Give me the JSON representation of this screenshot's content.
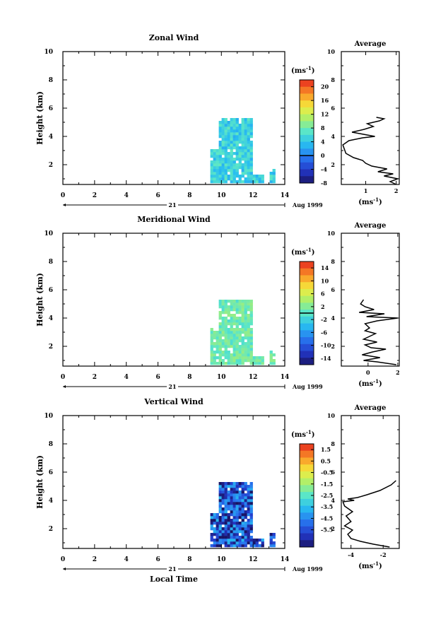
{
  "figure": {
    "shared_xlabel": "Local Time",
    "date_label": "21",
    "date_suffix": "Aug 1999"
  },
  "chart_data": [
    {
      "type": "heatmap",
      "title": "Zonal Wind",
      "ylabel": "Height (km)",
      "xlim": [
        0,
        14
      ],
      "ylim": [
        0.6,
        10
      ],
      "xticks": [
        "0",
        "2",
        "4",
        "6",
        "8",
        "10",
        "12",
        "14"
      ],
      "yticks": [
        "2",
        "4",
        "6",
        "8",
        "10"
      ],
      "colorbar": {
        "label_prefix": "(ms",
        "label_exp": "-1",
        "label_suffix": ")",
        "min": -8,
        "max": 22,
        "ticks": [
          "20",
          "16",
          "12",
          "8",
          "4",
          "0",
          "-4",
          "-8"
        ],
        "tick_values": [
          20,
          16,
          12,
          8,
          4,
          0,
          -4,
          -8
        ],
        "contour_value": 0
      },
      "region": {
        "x_start": 9.3,
        "x_end": 13.4,
        "y_top": 5.3,
        "dominant_value": 5,
        "description_value_range": [
          -2,
          8
        ]
      },
      "average_profile": {
        "title": "Average",
        "xlabel_prefix": "(ms",
        "xlabel_exp": "-1",
        "xlabel_suffix": ")",
        "xlim": [
          0.2,
          2.1
        ],
        "xticks": [
          "1",
          "2"
        ],
        "xtick_values": [
          1,
          2
        ],
        "yticks": [
          "2",
          "4",
          "6",
          "8",
          "10"
        ],
        "points": [
          [
            2.0,
            0.6
          ],
          [
            1.8,
            0.8
          ],
          [
            2.05,
            1.0
          ],
          [
            1.6,
            1.2
          ],
          [
            1.9,
            1.35
          ],
          [
            1.4,
            1.5
          ],
          [
            1.7,
            1.7
          ],
          [
            1.2,
            1.9
          ],
          [
            1.0,
            2.1
          ],
          [
            0.9,
            2.3
          ],
          [
            0.6,
            2.5
          ],
          [
            0.35,
            2.8
          ],
          [
            0.3,
            3.1
          ],
          [
            0.25,
            3.4
          ],
          [
            0.45,
            3.7
          ],
          [
            0.9,
            3.9
          ],
          [
            1.3,
            4.0
          ],
          [
            0.8,
            4.2
          ],
          [
            0.55,
            4.3
          ],
          [
            0.95,
            4.5
          ],
          [
            1.25,
            4.7
          ],
          [
            1.05,
            4.9
          ],
          [
            1.45,
            5.1
          ],
          [
            1.6,
            5.25
          ],
          [
            1.35,
            5.35
          ]
        ]
      }
    },
    {
      "type": "heatmap",
      "title": "Meridional Wind",
      "ylabel": "Height (km)",
      "xlim": [
        0,
        14
      ],
      "ylim": [
        0.6,
        10
      ],
      "xticks": [
        "0",
        "2",
        "4",
        "6",
        "8",
        "10",
        "12",
        "14"
      ],
      "yticks": [
        "2",
        "4",
        "6",
        "8",
        "10"
      ],
      "colorbar": {
        "label_prefix": "(ms",
        "label_exp": "-1",
        "label_suffix": ")",
        "min": -16,
        "max": 16,
        "ticks": [
          "14",
          "10",
          "6",
          "2",
          "-2",
          "-6",
          "-10",
          "-14"
        ],
        "tick_values": [
          14,
          10,
          6,
          2,
          -2,
          -6,
          -10,
          -14
        ],
        "contour_value": 0
      },
      "region": {
        "x_start": 9.3,
        "x_end": 13.4,
        "y_top": 5.3,
        "dominant_value": 1,
        "description_value_range": [
          -4,
          4
        ]
      },
      "average_profile": {
        "title": "Average",
        "xlabel_prefix": "(ms",
        "xlabel_exp": "-1",
        "xlabel_suffix": ")",
        "xlim": [
          -1.8,
          2.1
        ],
        "xticks": [
          "0",
          "2"
        ],
        "xtick_values": [
          0,
          2
        ],
        "yticks": [
          "2",
          "4",
          "6",
          "8",
          "10"
        ],
        "points": [
          [
            1.9,
            0.7
          ],
          [
            0.6,
            0.9
          ],
          [
            -0.3,
            1.0
          ],
          [
            0.8,
            1.2
          ],
          [
            -0.4,
            1.4
          ],
          [
            0.3,
            1.6
          ],
          [
            1.2,
            1.8
          ],
          [
            0.2,
            1.9
          ],
          [
            -0.2,
            2.1
          ],
          [
            0.6,
            2.3
          ],
          [
            -0.3,
            2.5
          ],
          [
            0.1,
            2.7
          ],
          [
            0.5,
            2.9
          ],
          [
            -0.2,
            3.1
          ],
          [
            0.1,
            3.3
          ],
          [
            -0.2,
            3.6
          ],
          [
            0.6,
            3.8
          ],
          [
            2.0,
            4.0
          ],
          [
            -0.1,
            4.1
          ],
          [
            1.1,
            4.3
          ],
          [
            -0.6,
            4.4
          ],
          [
            0.4,
            4.6
          ],
          [
            -0.2,
            4.8
          ],
          [
            -0.5,
            5.0
          ],
          [
            -0.3,
            5.3
          ]
        ]
      }
    },
    {
      "type": "heatmap",
      "title": "Vertical Wind",
      "ylabel": "Height (km)",
      "xlim": [
        0,
        14
      ],
      "ylim": [
        0.6,
        10
      ],
      "xticks": [
        "0",
        "2",
        "4",
        "6",
        "8",
        "10",
        "12",
        "14"
      ],
      "yticks": [
        "2",
        "4",
        "6",
        "8",
        "10"
      ],
      "colorbar": {
        "label_prefix": "(ms",
        "label_exp": "-1",
        "label_suffix": ")",
        "min": -7,
        "max": 2,
        "ticks": [
          "1.5",
          "0.5",
          "-0.5",
          "-1.5",
          "-2.5",
          "-3.5",
          "-4.5",
          "-5.5"
        ],
        "tick_values": [
          1.5,
          0.5,
          -0.5,
          -1.5,
          -2.5,
          -3.5,
          -4.5,
          -5.5
        ],
        "contour_value": null
      },
      "region": {
        "x_start": 9.3,
        "x_end": 13.4,
        "y_top": 5.3,
        "dominant_value": -5.5,
        "description_value_range": [
          -6.5,
          1
        ]
      },
      "average_profile": {
        "title": "Average",
        "xlabel_prefix": "(ms",
        "xlabel_exp": "-1",
        "xlabel_suffix": ")",
        "xlim": [
          -4.6,
          -1.0
        ],
        "xticks": [
          "-4",
          "-2"
        ],
        "xtick_values": [
          -4,
          -2
        ],
        "yticks": [
          "2",
          "4",
          "6",
          "8",
          "10"
        ],
        "points": [
          [
            -1.6,
            0.7
          ],
          [
            -2.6,
            0.9
          ],
          [
            -3.4,
            1.1
          ],
          [
            -4.0,
            1.3
          ],
          [
            -4.2,
            1.6
          ],
          [
            -3.9,
            1.9
          ],
          [
            -4.4,
            2.2
          ],
          [
            -4.0,
            2.5
          ],
          [
            -4.3,
            2.9
          ],
          [
            -3.9,
            3.2
          ],
          [
            -4.4,
            3.6
          ],
          [
            -4.5,
            3.9
          ],
          [
            -3.8,
            4.0
          ],
          [
            -4.2,
            4.1
          ],
          [
            -3.6,
            4.2
          ],
          [
            -3.0,
            4.4
          ],
          [
            -2.2,
            4.7
          ],
          [
            -1.5,
            5.1
          ],
          [
            -1.2,
            5.4
          ]
        ]
      }
    }
  ]
}
